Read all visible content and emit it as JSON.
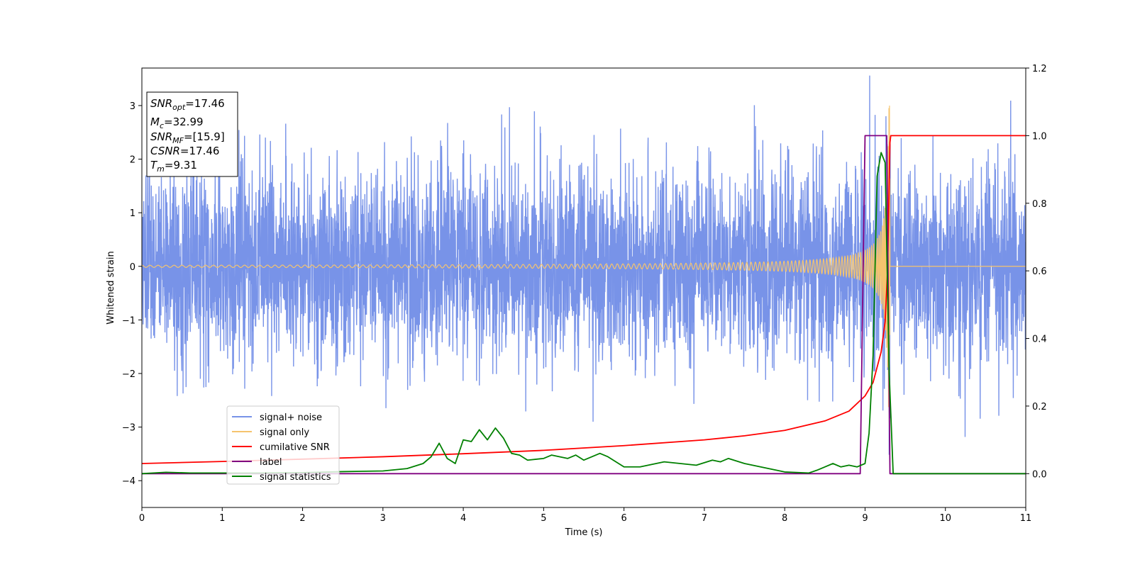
{
  "chart_data": {
    "type": "line",
    "xlabel": "Time (s)",
    "ylabel": "Whitened strain",
    "xlim": [
      0,
      11
    ],
    "ylim_left": [
      -4.5,
      3.7
    ],
    "ylim_right": [
      -0.1,
      1.2
    ],
    "x_ticks": [
      "0",
      "1",
      "2",
      "3",
      "4",
      "5",
      "6",
      "7",
      "8",
      "9",
      "10",
      "11"
    ],
    "y_ticks_left": [
      "−4",
      "−3",
      "−2",
      "−1",
      "0",
      "1",
      "2",
      "3"
    ],
    "y_ticks_right": [
      "0.0",
      "0.2",
      "0.4",
      "0.6",
      "0.8",
      "1.0",
      "1.2"
    ],
    "grid": false,
    "legend_position": "lower-left",
    "info_box": {
      "snr_opt": {
        "sym": "SNR",
        "sub": "opt",
        "value": "=17.46"
      },
      "mc": {
        "sym": "M",
        "sub": "c",
        "value": "=32.99"
      },
      "snr_mf": {
        "sym": "SNR",
        "sub": "MF",
        "value": "=[15.9]"
      },
      "csnr": {
        "sym": "CSNR",
        "sub": "",
        "value": "=17.46"
      },
      "tm": {
        "sym": "T",
        "sub": "m",
        "value": "=9.31"
      }
    },
    "series": [
      {
        "name": "signal+ noise",
        "color": "#7893e8",
        "axis": "left",
        "kind": "noise",
        "sigma": 0.92,
        "merger_time": 9.31
      },
      {
        "name": "signal only",
        "color": "#f5c46e",
        "axis": "left",
        "kind": "chirp",
        "merger_time": 9.31,
        "peak_amplitude": 3.0
      },
      {
        "name": "cumilative SNR",
        "color": "#ff0000",
        "axis": "right",
        "x": [
          0,
          1,
          2,
          3,
          4,
          5,
          6,
          7,
          7.5,
          8,
          8.5,
          8.8,
          9.0,
          9.1,
          9.2,
          9.25,
          9.28,
          9.31,
          9.32,
          11
        ],
        "y": [
          0.03,
          0.036,
          0.043,
          0.05,
          0.059,
          0.069,
          0.083,
          0.1,
          0.112,
          0.128,
          0.156,
          0.185,
          0.23,
          0.27,
          0.36,
          0.45,
          0.6,
          0.98,
          1.0,
          1.0
        ]
      },
      {
        "name": "label",
        "color": "#800080",
        "axis": "right",
        "x": [
          0,
          8.94,
          9.0,
          9.27,
          9.31,
          11
        ],
        "y": [
          0,
          0,
          1,
          1,
          0,
          0
        ]
      },
      {
        "name": "signal statistics",
        "color": "#008000",
        "axis": "right",
        "x": [
          0,
          0.3,
          0.6,
          1.0,
          1.5,
          2.0,
          2.5,
          3.0,
          3.3,
          3.5,
          3.6,
          3.7,
          3.8,
          3.9,
          4.0,
          4.1,
          4.2,
          4.3,
          4.4,
          4.5,
          4.6,
          4.7,
          4.8,
          5.0,
          5.1,
          5.2,
          5.3,
          5.4,
          5.5,
          5.7,
          5.8,
          5.9,
          6.0,
          6.2,
          6.4,
          6.5,
          6.7,
          6.9,
          7.1,
          7.2,
          7.3,
          7.5,
          7.8,
          8.0,
          8.3,
          8.4,
          8.5,
          8.6,
          8.7,
          8.8,
          8.9,
          9.0,
          9.05,
          9.1,
          9.15,
          9.2,
          9.25,
          9.3,
          9.35,
          11
        ],
        "y": [
          0.0,
          0.004,
          0.002,
          0.002,
          0.002,
          0.003,
          0.006,
          0.008,
          0.015,
          0.03,
          0.05,
          0.09,
          0.045,
          0.03,
          0.1,
          0.095,
          0.13,
          0.1,
          0.135,
          0.105,
          0.06,
          0.055,
          0.04,
          0.045,
          0.055,
          0.05,
          0.045,
          0.055,
          0.04,
          0.06,
          0.05,
          0.035,
          0.02,
          0.02,
          0.03,
          0.035,
          0.03,
          0.025,
          0.04,
          0.035,
          0.045,
          0.03,
          0.015,
          0.005,
          0.002,
          0.01,
          0.02,
          0.03,
          0.02,
          0.025,
          0.02,
          0.03,
          0.12,
          0.35,
          0.88,
          0.95,
          0.92,
          0.3,
          0.0,
          0.0
        ]
      }
    ]
  }
}
